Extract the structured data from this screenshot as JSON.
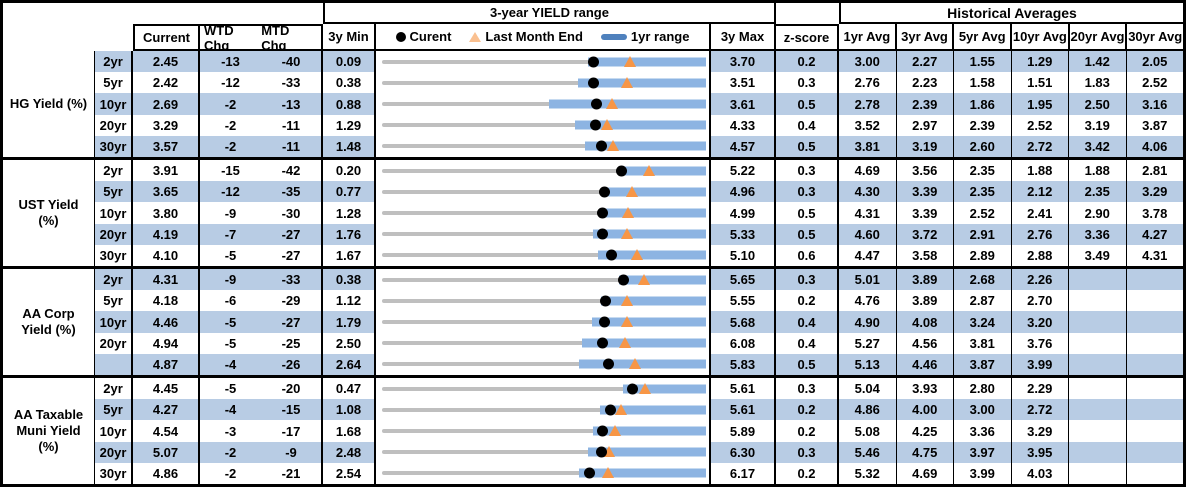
{
  "colors": {
    "row_stripe": "#B8CCE4",
    "range_bar": "#8DB4E2",
    "range_track": "#BFBFBF",
    "current_dot": "#000000",
    "last_month_end_triangle": "#F79646",
    "legend_dash": "#4F81BD",
    "legend_triangle": "#FAC090",
    "border": "#000000"
  },
  "chart_data": {
    "type": "table",
    "range_header": "3-year YIELD range",
    "historical_header": "Historical Averages",
    "columns": {
      "current": "Current",
      "wtd": "WTD Chg",
      "mtd": "MTD Chg",
      "min": "3y Min",
      "max": "3y Max",
      "zscore": "z-score",
      "avgs": [
        "1yr Avg",
        "3yr Avg",
        "5yr Avg",
        "10yr Avg",
        "20yr Avg",
        "30yr Avg"
      ]
    },
    "legend": {
      "current": "Curent",
      "last_month_end": "Last Month End",
      "range": "1yr range"
    },
    "sections": [
      {
        "label": "HG Yield (%)",
        "rows": [
          {
            "tenor": "2yr",
            "current": "2.45",
            "wtd": "-13",
            "mtd": "-40",
            "min": "0.09",
            "max": "3.70",
            "z": "0.2",
            "avgs": [
              "3.00",
              "2.27",
              "1.55",
              "1.29",
              "1.42",
              "2.05"
            ],
            "bar_lo": 2.39,
            "bar_hi": 3.7,
            "lme": 2.85
          },
          {
            "tenor": "5yr",
            "current": "2.42",
            "wtd": "-12",
            "mtd": "-33",
            "min": "0.38",
            "max": "3.51",
            "z": "0.3",
            "avgs": [
              "2.76",
              "2.23",
              "1.58",
              "1.51",
              "1.83",
              "2.52"
            ],
            "bar_lo": 2.27,
            "bar_hi": 3.51,
            "lme": 2.75
          },
          {
            "tenor": "10yr",
            "current": "2.69",
            "wtd": "-2",
            "mtd": "-13",
            "min": "0.88",
            "max": "3.61",
            "z": "0.5",
            "avgs": [
              "2.78",
              "2.39",
              "1.86",
              "1.95",
              "2.50",
              "3.16"
            ],
            "bar_lo": 2.29,
            "bar_hi": 3.61,
            "lme": 2.82
          },
          {
            "tenor": "20yr",
            "current": "3.29",
            "wtd": "-2",
            "mtd": "-11",
            "min": "1.29",
            "max": "4.33",
            "z": "0.4",
            "avgs": [
              "3.52",
              "2.97",
              "2.39",
              "2.52",
              "3.19",
              "3.87"
            ],
            "bar_lo": 3.1,
            "bar_hi": 4.33,
            "lme": 3.4
          },
          {
            "tenor": "30yr",
            "current": "3.57",
            "wtd": "-2",
            "mtd": "-11",
            "min": "1.48",
            "max": "4.57",
            "z": "0.5",
            "avgs": [
              "3.81",
              "3.19",
              "2.60",
              "2.72",
              "3.42",
              "4.06"
            ],
            "bar_lo": 3.42,
            "bar_hi": 4.57,
            "lme": 3.68
          }
        ]
      },
      {
        "label": "UST Yield (%)",
        "rows": [
          {
            "tenor": "2yr",
            "current": "3.91",
            "wtd": "-15",
            "mtd": "-42",
            "min": "0.20",
            "max": "5.22",
            "z": "0.3",
            "avgs": [
              "4.69",
              "3.56",
              "2.35",
              "1.88",
              "1.88",
              "2.81"
            ],
            "bar_lo": 3.85,
            "bar_hi": 5.22,
            "lme": 4.33
          },
          {
            "tenor": "5yr",
            "current": "3.65",
            "wtd": "-12",
            "mtd": "-35",
            "min": "0.77",
            "max": "4.96",
            "z": "0.3",
            "avgs": [
              "4.30",
              "3.39",
              "2.35",
              "2.12",
              "2.35",
              "3.29"
            ],
            "bar_lo": 3.63,
            "bar_hi": 4.96,
            "lme": 4.0
          },
          {
            "tenor": "10yr",
            "current": "3.80",
            "wtd": "-9",
            "mtd": "-30",
            "min": "1.28",
            "max": "4.99",
            "z": "0.5",
            "avgs": [
              "4.31",
              "3.39",
              "2.52",
              "2.41",
              "2.90",
              "3.78"
            ],
            "bar_lo": 3.76,
            "bar_hi": 4.99,
            "lme": 4.1
          },
          {
            "tenor": "20yr",
            "current": "4.19",
            "wtd": "-7",
            "mtd": "-27",
            "min": "1.76",
            "max": "5.33",
            "z": "0.5",
            "avgs": [
              "4.60",
              "3.72",
              "2.91",
              "2.76",
              "3.36",
              "4.27"
            ],
            "bar_lo": 4.09,
            "bar_hi": 5.33,
            "lme": 4.46
          },
          {
            "tenor": "30yr",
            "current": "4.10",
            "wtd": "-5",
            "mtd": "-27",
            "min": "1.67",
            "max": "5.10",
            "z": "0.6",
            "avgs": [
              "4.47",
              "3.58",
              "2.89",
              "2.88",
              "3.49",
              "4.31"
            ],
            "bar_lo": 3.96,
            "bar_hi": 5.1,
            "lme": 4.37
          }
        ]
      },
      {
        "label": "AA Corp Yield (%)",
        "rows": [
          {
            "tenor": "2yr",
            "current": "4.31",
            "wtd": "-9",
            "mtd": "-33",
            "min": "0.38",
            "max": "5.65",
            "z": "0.3",
            "avgs": [
              "5.01",
              "3.89",
              "2.68",
              "2.26",
              "",
              ""
            ],
            "bar_lo": 4.24,
            "bar_hi": 5.65,
            "lme": 4.64
          },
          {
            "tenor": "5yr",
            "current": "4.18",
            "wtd": "-6",
            "mtd": "-29",
            "min": "1.12",
            "max": "5.55",
            "z": "0.2",
            "avgs": [
              "4.76",
              "3.89",
              "2.87",
              "2.70",
              "",
              ""
            ],
            "bar_lo": 4.12,
            "bar_hi": 5.55,
            "lme": 4.47
          },
          {
            "tenor": "10yr",
            "current": "4.46",
            "wtd": "-5",
            "mtd": "-27",
            "min": "1.79",
            "max": "5.68",
            "z": "0.4",
            "avgs": [
              "4.90",
              "4.08",
              "3.24",
              "3.20",
              "",
              ""
            ],
            "bar_lo": 4.31,
            "bar_hi": 5.68,
            "lme": 4.73
          },
          {
            "tenor": "20yr",
            "current": "4.94",
            "wtd": "-5",
            "mtd": "-25",
            "min": "2.50",
            "max": "6.08",
            "z": "0.4",
            "avgs": [
              "5.27",
              "4.56",
              "3.81",
              "3.76",
              "",
              ""
            ],
            "bar_lo": 4.71,
            "bar_hi": 6.08,
            "lme": 5.19
          },
          {
            "tenor": "",
            "current": "4.87",
            "wtd": "-4",
            "mtd": "-26",
            "min": "2.64",
            "max": "5.83",
            "z": "0.5",
            "avgs": [
              "5.13",
              "4.46",
              "3.87",
              "3.99",
              "",
              ""
            ],
            "bar_lo": 4.58,
            "bar_hi": 5.83,
            "lme": 5.13
          }
        ]
      },
      {
        "label": "AA Taxable Muni Yield (%)",
        "rows": [
          {
            "tenor": "2yr",
            "current": "4.45",
            "wtd": "-5",
            "mtd": "-20",
            "min": "0.47",
            "max": "5.61",
            "z": "0.3",
            "avgs": [
              "5.04",
              "3.93",
              "2.80",
              "2.29",
              "",
              ""
            ],
            "bar_lo": 4.29,
            "bar_hi": 5.61,
            "lme": 4.65
          },
          {
            "tenor": "5yr",
            "current": "4.27",
            "wtd": "-4",
            "mtd": "-15",
            "min": "1.08",
            "max": "5.61",
            "z": "0.2",
            "avgs": [
              "4.86",
              "4.00",
              "3.00",
              "2.72",
              "",
              ""
            ],
            "bar_lo": 4.13,
            "bar_hi": 5.61,
            "lme": 4.42
          },
          {
            "tenor": "10yr",
            "current": "4.54",
            "wtd": "-3",
            "mtd": "-17",
            "min": "1.68",
            "max": "5.89",
            "z": "0.2",
            "avgs": [
              "5.08",
              "4.25",
              "3.36",
              "3.29",
              "",
              ""
            ],
            "bar_lo": 4.42,
            "bar_hi": 5.89,
            "lme": 4.71
          },
          {
            "tenor": "20yr",
            "current": "5.07",
            "wtd": "-2",
            "mtd": "-9",
            "min": "2.48",
            "max": "6.30",
            "z": "0.3",
            "avgs": [
              "5.46",
              "4.75",
              "3.97",
              "3.95",
              "",
              ""
            ],
            "bar_lo": 4.91,
            "bar_hi": 6.3,
            "lme": 5.16
          },
          {
            "tenor": "30yr",
            "current": "4.86",
            "wtd": "-2",
            "mtd": "-21",
            "min": "2.54",
            "max": "6.17",
            "z": "0.2",
            "avgs": [
              "5.32",
              "4.69",
              "3.99",
              "4.03",
              "",
              ""
            ],
            "bar_lo": 4.75,
            "bar_hi": 6.17,
            "lme": 5.07
          }
        ]
      }
    ]
  }
}
